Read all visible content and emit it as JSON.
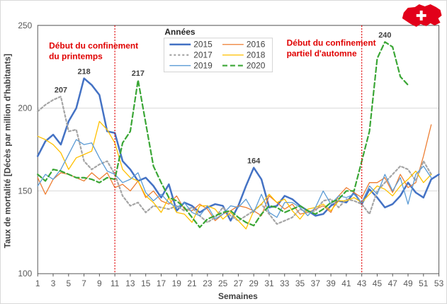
{
  "chart_data": {
    "type": "line",
    "xlabel": "Semaines",
    "ylabel": "Taux de mortalité  [Décès par million d'habitants]",
    "xlim": [
      1,
      53
    ],
    "ylim": [
      100,
      250
    ],
    "xticks": [
      "1",
      "3",
      "5",
      "7",
      "9",
      "11",
      "13",
      "15",
      "17",
      "19",
      "21",
      "23",
      "25",
      "27",
      "29",
      "31",
      "33",
      "35",
      "37",
      "39",
      "41",
      "43",
      "45",
      "47",
      "49",
      "51",
      "53"
    ],
    "yticks": [
      "100",
      "150",
      "200",
      "250"
    ],
    "legend_title": "Années",
    "series": [
      {
        "name": "2015",
        "color": "#4472c4",
        "dash": "",
        "width": 2.5,
        "x": [
          1,
          2,
          3,
          4,
          5,
          6,
          7,
          8,
          9,
          10,
          11,
          12,
          13,
          14,
          15,
          16,
          17,
          18,
          19,
          20,
          21,
          22,
          23,
          24,
          25,
          26,
          27,
          28,
          29,
          30,
          31,
          32,
          33,
          34,
          35,
          36,
          37,
          38,
          39,
          40,
          41,
          42,
          43,
          44,
          45,
          46,
          47,
          48,
          49,
          50,
          51,
          52,
          53
        ],
        "values": [
          171,
          180,
          184,
          178,
          192,
          200,
          218,
          214,
          208,
          186,
          185,
          168,
          163,
          156,
          158,
          153,
          146,
          154,
          138,
          143,
          141,
          137,
          140,
          142,
          141,
          132,
          141,
          153,
          164,
          157,
          140,
          141,
          147,
          145,
          141,
          138,
          135,
          136,
          141,
          144,
          143,
          149,
          142,
          151,
          146,
          140,
          142,
          147,
          155,
          149,
          146,
          157,
          160
        ]
      },
      {
        "name": "2016",
        "color": "#ed7d31",
        "dash": "",
        "width": 1.3,
        "x": [
          1,
          2,
          3,
          4,
          5,
          6,
          7,
          8,
          9,
          10,
          11,
          12,
          13,
          14,
          15,
          16,
          17,
          18,
          19,
          20,
          21,
          22,
          23,
          24,
          25,
          26,
          27,
          28,
          29,
          30,
          31,
          32,
          33,
          34,
          35,
          36,
          37,
          38,
          39,
          40,
          41,
          42,
          43,
          44,
          45,
          46,
          47,
          48,
          49,
          50,
          51,
          52
        ],
        "values": [
          158,
          148,
          157,
          161,
          160,
          158,
          156,
          161,
          157,
          161,
          152,
          154,
          150,
          156,
          146,
          150,
          144,
          142,
          147,
          139,
          138,
          142,
          139,
          132,
          136,
          138,
          141,
          140,
          138,
          135,
          147,
          143,
          139,
          142,
          136,
          137,
          139,
          141,
          137,
          147,
          152,
          149,
          146,
          155,
          155,
          158,
          149,
          160,
          152,
          155,
          171,
          190
        ]
      },
      {
        "name": "2017",
        "color": "#a5a5a5",
        "dash": "3,3",
        "width": 2.2,
        "x": [
          1,
          2,
          3,
          4,
          5,
          6,
          7,
          8,
          9,
          10,
          11,
          12,
          13,
          14,
          15,
          16,
          17,
          18,
          19,
          20,
          21,
          22,
          23,
          24,
          25,
          26,
          27,
          28,
          29,
          30,
          31,
          32,
          33,
          34,
          35,
          36,
          37,
          38,
          39,
          40,
          41,
          42,
          43,
          44,
          45,
          46,
          47,
          48,
          49,
          50,
          51,
          52
        ],
        "values": [
          198,
          202,
          205,
          207,
          186,
          187,
          168,
          163,
          166,
          168,
          160,
          147,
          141,
          143,
          137,
          141,
          140,
          139,
          141,
          138,
          140,
          135,
          131,
          134,
          140,
          135,
          132,
          135,
          138,
          142,
          136,
          130,
          132,
          134,
          139,
          137,
          138,
          144,
          145,
          140,
          145,
          144,
          142,
          136,
          150,
          155,
          160,
          165,
          163,
          156,
          168,
          160
        ]
      },
      {
        "name": "2018",
        "color": "#ffc000",
        "dash": "",
        "width": 1.3,
        "x": [
          1,
          2,
          3,
          4,
          5,
          6,
          7,
          8,
          9,
          10,
          11,
          12,
          13,
          14,
          15,
          16,
          17,
          18,
          19,
          20,
          21,
          22,
          23,
          24,
          25,
          26,
          27,
          28,
          29,
          30,
          31,
          32,
          33,
          34,
          35,
          36,
          37,
          38,
          39,
          40,
          41,
          42,
          43,
          44,
          45,
          46,
          47,
          48,
          49,
          50,
          51,
          52
        ],
        "values": [
          183,
          181,
          178,
          173,
          163,
          170,
          172,
          174,
          192,
          187,
          179,
          163,
          158,
          156,
          147,
          143,
          137,
          146,
          137,
          136,
          131,
          141,
          141,
          139,
          133,
          137,
          132,
          127,
          138,
          142,
          148,
          143,
          145,
          138,
          133,
          139,
          140,
          142,
          138,
          144,
          144,
          146,
          143,
          148,
          153,
          151,
          147,
          153,
          157,
          162,
          155,
          160
        ]
      },
      {
        "name": "2019",
        "color": "#5b9bd5",
        "dash": "",
        "width": 1.3,
        "x": [
          1,
          2,
          3,
          4,
          5,
          6,
          7,
          8,
          9,
          10,
          11,
          12,
          13,
          14,
          15,
          16,
          17,
          18,
          19,
          20,
          21,
          22,
          23,
          24,
          25,
          26,
          27,
          28,
          29,
          30,
          31,
          32,
          33,
          34,
          35,
          36,
          37,
          38,
          39,
          40,
          41,
          42,
          43,
          44,
          45,
          46,
          47,
          48,
          49,
          50,
          51,
          52
        ],
        "values": [
          153,
          160,
          157,
          163,
          172,
          181,
          178,
          179,
          170,
          162,
          160,
          155,
          157,
          161,
          149,
          144,
          148,
          143,
          140,
          143,
          137,
          135,
          141,
          133,
          136,
          141,
          140,
          145,
          137,
          148,
          137,
          134,
          143,
          143,
          140,
          135,
          140,
          150,
          142,
          147,
          146,
          148,
          143,
          153,
          148,
          160,
          150,
          158,
          142,
          160,
          165,
          158
        ]
      },
      {
        "name": "2020",
        "color": "#3aa635",
        "dash": "7,4",
        "width": 2.2,
        "x": [
          1,
          2,
          3,
          4,
          5,
          6,
          7,
          8,
          9,
          10,
          11,
          12,
          13,
          14,
          15,
          16,
          17,
          18,
          19,
          20,
          21,
          22,
          23,
          24,
          25,
          26,
          27,
          28,
          29,
          30,
          31,
          32,
          33,
          34,
          35,
          36,
          37,
          38,
          39,
          40,
          41,
          42,
          43,
          44,
          45,
          46,
          47,
          48,
          49
        ],
        "values": [
          160,
          156,
          163,
          162,
          160,
          158,
          158,
          157,
          155,
          158,
          157,
          179,
          186,
          217,
          191,
          165,
          155,
          146,
          144,
          140,
          134,
          128,
          133,
          135,
          137,
          138,
          134,
          131,
          129,
          136,
          141,
          140,
          137,
          139,
          141,
          138,
          136,
          139,
          143,
          145,
          150,
          150,
          168,
          186,
          230,
          240,
          237,
          219,
          214
        ]
      }
    ],
    "annotations": [
      {
        "text_lines": [
          "Début du confinement",
          "du printemps"
        ],
        "at_week": 11
      },
      {
        "text_lines": [
          "Début du confinement",
          "partiel d'automne"
        ],
        "at_week": 43
      }
    ],
    "peak_labels": [
      {
        "text": "207",
        "x": 4,
        "y": 207
      },
      {
        "text": "218",
        "x": 7,
        "y": 218
      },
      {
        "text": "217",
        "x": 14,
        "y": 217
      },
      {
        "text": "164",
        "x": 29,
        "y": 164
      },
      {
        "text": "240",
        "x": 46,
        "y": 240
      }
    ]
  },
  "colors": {
    "annotation": "#e00000",
    "flag_red": "#e2001a",
    "flag_cross": "#ffffff"
  },
  "flag_icon": "swiss-map-flag-icon"
}
